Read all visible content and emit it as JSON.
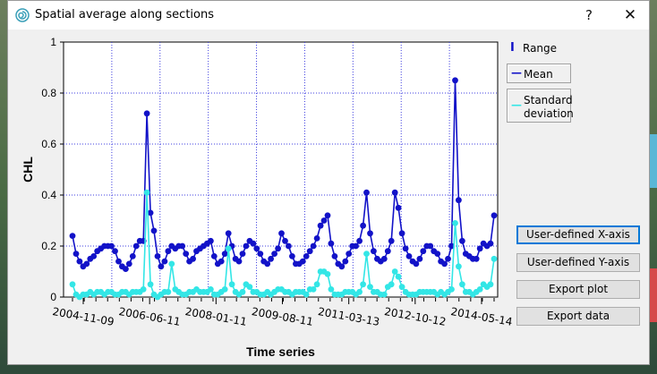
{
  "window": {
    "title": "Spatial average along sections",
    "help_label": "?",
    "close_label": "✕",
    "app_icon": "spiral-app-icon"
  },
  "legend": {
    "range": "Range",
    "mean": "Mean",
    "std_line1": "Standard",
    "std_line2": "deviation"
  },
  "buttons": {
    "user_x": "User-defined X-axis",
    "user_y": "User-defined Y-axis",
    "export_plot": "Export plot",
    "export_data": "Export data"
  },
  "colors": {
    "mean": "#1212c8",
    "std": "#33e6e6",
    "grid": "#4040e0"
  },
  "chart_data": {
    "type": "line",
    "ylabel": "CHL",
    "xlabel": "Time series",
    "ylim": [
      0,
      1
    ],
    "yticks": [
      "0",
      "0.2",
      "0.4",
      "0.6",
      "0.8",
      "1"
    ],
    "xticks": [
      "2004-11-09",
      "2006-06-11",
      "2008-01-11",
      "2009-08-11",
      "2011-03-13",
      "2012-10-12",
      "2014-05-14"
    ],
    "grid": true,
    "legend_position": "right",
    "series": [
      {
        "name": "Mean",
        "values": [
          0.24,
          0.17,
          0.14,
          0.12,
          0.13,
          0.15,
          0.16,
          0.18,
          0.19,
          0.2,
          0.2,
          0.2,
          0.18,
          0.14,
          0.12,
          0.11,
          0.13,
          0.16,
          0.2,
          0.22,
          0.22,
          0.72,
          0.33,
          0.26,
          0.16,
          0.12,
          0.14,
          0.18,
          0.2,
          0.19,
          0.2,
          0.2,
          0.17,
          0.14,
          0.15,
          0.18,
          0.19,
          0.2,
          0.21,
          0.22,
          0.16,
          0.13,
          0.14,
          0.17,
          0.25,
          0.2,
          0.15,
          0.14,
          0.17,
          0.2,
          0.22,
          0.21,
          0.19,
          0.17,
          0.14,
          0.13,
          0.15,
          0.17,
          0.19,
          0.25,
          0.22,
          0.2,
          0.16,
          0.13,
          0.13,
          0.14,
          0.16,
          0.18,
          0.2,
          0.23,
          0.28,
          0.3,
          0.32,
          0.21,
          0.16,
          0.13,
          0.12,
          0.14,
          0.17,
          0.2,
          0.2,
          0.22,
          0.28,
          0.41,
          0.25,
          0.18,
          0.15,
          0.14,
          0.15,
          0.18,
          0.22,
          0.41,
          0.35,
          0.25,
          0.19,
          0.16,
          0.14,
          0.13,
          0.15,
          0.18,
          0.2,
          0.2,
          0.18,
          0.17,
          0.14,
          0.13,
          0.15,
          0.2,
          0.85,
          0.38,
          0.22,
          0.17,
          0.16,
          0.15,
          0.15,
          0.19,
          0.21,
          0.2,
          0.21,
          0.32
        ]
      },
      {
        "name": "Standard deviation",
        "values": [
          0.05,
          0.01,
          0.0,
          0.01,
          0.01,
          0.02,
          0.01,
          0.02,
          0.02,
          0.01,
          0.02,
          0.02,
          0.01,
          0.01,
          0.02,
          0.02,
          0.01,
          0.02,
          0.02,
          0.02,
          0.03,
          0.41,
          0.05,
          0.01,
          0.0,
          0.01,
          0.02,
          0.02,
          0.13,
          0.03,
          0.02,
          0.01,
          0.01,
          0.02,
          0.02,
          0.03,
          0.02,
          0.02,
          0.02,
          0.03,
          0.01,
          0.01,
          0.02,
          0.03,
          0.19,
          0.05,
          0.02,
          0.01,
          0.02,
          0.05,
          0.04,
          0.02,
          0.02,
          0.01,
          0.01,
          0.02,
          0.01,
          0.02,
          0.03,
          0.03,
          0.02,
          0.02,
          0.01,
          0.02,
          0.02,
          0.02,
          0.01,
          0.03,
          0.03,
          0.05,
          0.1,
          0.1,
          0.09,
          0.03,
          0.01,
          0.01,
          0.01,
          0.02,
          0.02,
          0.02,
          0.01,
          0.02,
          0.05,
          0.17,
          0.04,
          0.02,
          0.02,
          0.01,
          0.01,
          0.04,
          0.05,
          0.1,
          0.08,
          0.04,
          0.02,
          0.01,
          0.01,
          0.01,
          0.02,
          0.02,
          0.02,
          0.02,
          0.02,
          0.01,
          0.02,
          0.01,
          0.02,
          0.03,
          0.29,
          0.12,
          0.05,
          0.02,
          0.02,
          0.01,
          0.02,
          0.03,
          0.05,
          0.04,
          0.05,
          0.15
        ]
      }
    ]
  }
}
